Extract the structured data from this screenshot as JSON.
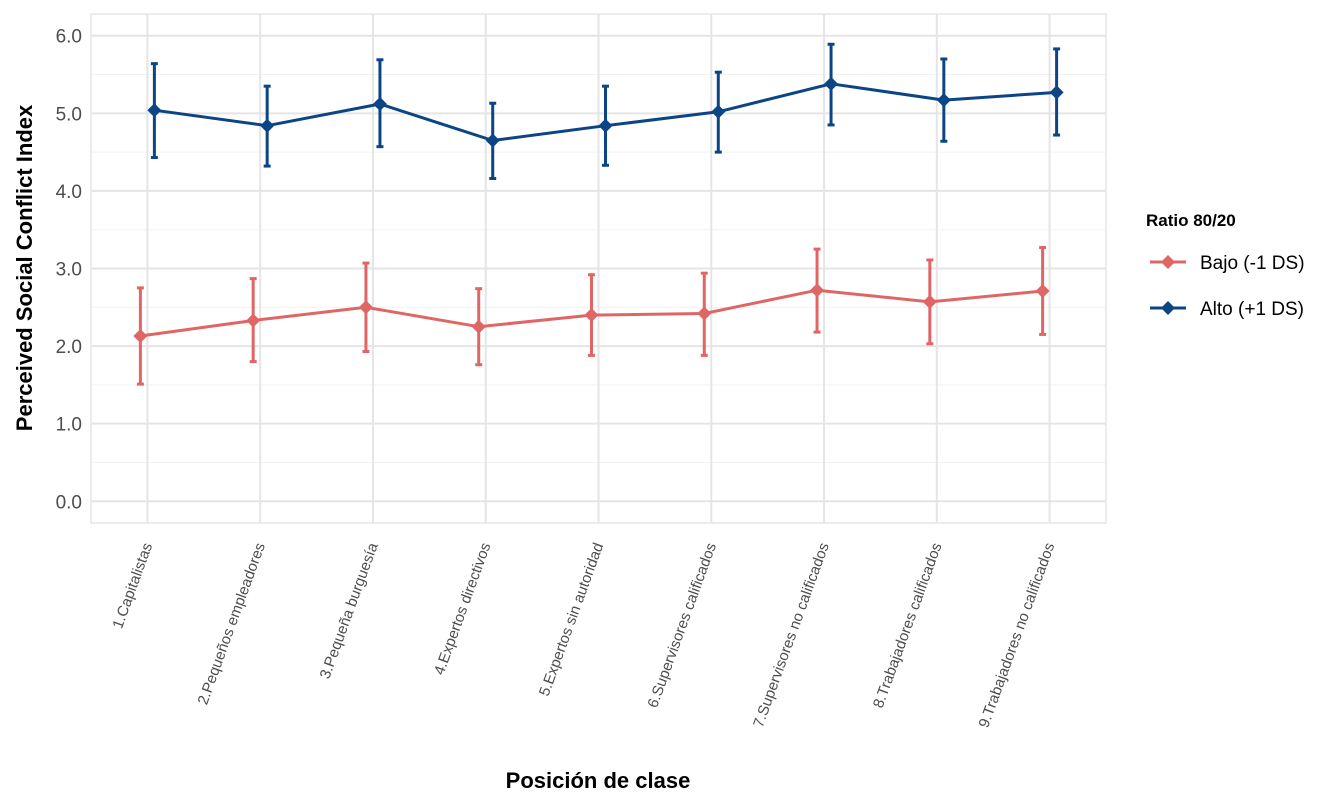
{
  "chart_data": {
    "type": "line",
    "xlabel": "Posición de clase",
    "ylabel": "Perceived Social Conflict Index",
    "categories": [
      "1.Capitalistas",
      "2.Pequeños empleadores",
      "3.Pequeña burguesía",
      "4.Expertos directivos",
      "5.Expertos sin autoridad",
      "6.Supervisores calificados",
      "7.Supervisores no calificados",
      "8.Trabajadores calificados",
      "9.Trabajadores no calificados"
    ],
    "ylim": [
      -0.28,
      6.28
    ],
    "yticks": [
      0,
      1,
      2,
      3,
      4,
      5,
      6
    ],
    "ytick_labels": [
      "0.0",
      "1.0",
      "2.0",
      "3.0",
      "4.0",
      "5.0",
      "6.0"
    ],
    "grid": true,
    "legend": {
      "title": "Ratio 80/20",
      "position": "right"
    },
    "series": [
      {
        "name": "Bajo (-1 DS)",
        "color": "#E06666",
        "values": [
          2.13,
          2.33,
          2.5,
          2.25,
          2.4,
          2.42,
          2.72,
          2.57,
          2.71
        ],
        "lower": [
          1.51,
          1.8,
          1.93,
          1.76,
          1.88,
          1.88,
          2.18,
          2.03,
          2.15
        ],
        "upper": [
          2.75,
          2.87,
          3.07,
          2.74,
          2.92,
          2.94,
          3.25,
          3.11,
          3.27
        ]
      },
      {
        "name": "Alto (+1 DS)",
        "color": "#0B4586",
        "values": [
          5.04,
          4.84,
          5.12,
          4.65,
          4.84,
          5.02,
          5.38,
          5.17,
          5.27
        ],
        "lower": [
          4.43,
          4.32,
          4.57,
          4.16,
          4.33,
          4.5,
          4.85,
          4.64,
          4.72
        ],
        "upper": [
          5.64,
          5.35,
          5.69,
          5.13,
          5.35,
          5.53,
          5.89,
          5.7,
          5.83
        ]
      }
    ]
  }
}
